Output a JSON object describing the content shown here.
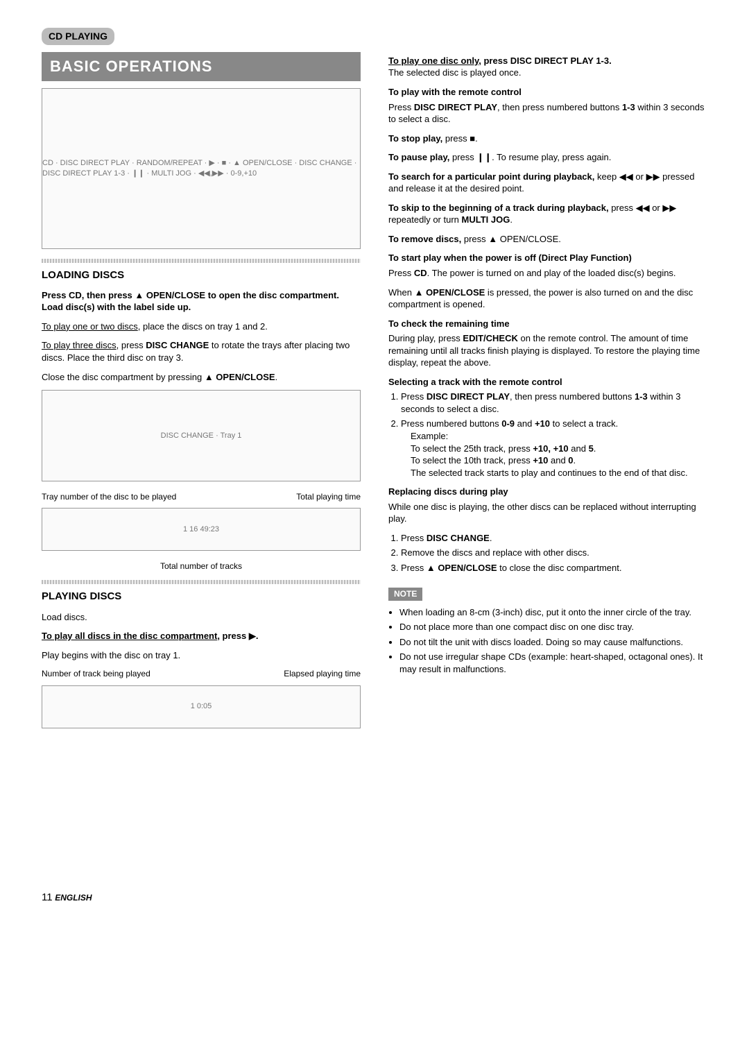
{
  "page_tag": "CD PLAYING",
  "banner": "BASIC OPERATIONS",
  "left": {
    "diagram_main_labels": "CD · DISC DIRECT PLAY · RANDOM/REPEAT · ▶ · ■ · ▲ OPEN/CLOSE · DISC CHANGE · DISC DIRECT PLAY 1-3 · ❙❙ · MULTI JOG · ◀◀,▶▶ · 0-9,+10",
    "loading_title": "LOADING DISCS",
    "loading_lead": "Press CD, then press ▲ OPEN/CLOSE to open the disc compartment.  Load disc(s) with the label side up.",
    "loading_p1_a": "To play one or two discs",
    "loading_p1_b": ", place the discs on tray 1 and 2.",
    "loading_p2_a": "To play three discs",
    "loading_p2_b": ", press ",
    "loading_p2_c": "DISC CHANGE",
    "loading_p2_d": " to rotate the trays after placing two discs. Place the third disc on tray 3.",
    "loading_p3": "Close the disc compartment by pressing ▲ OPEN/CLOSE.",
    "tray_diagram_labels": "DISC CHANGE · Tray 1",
    "display_cap_l": "Tray number of the disc to be played",
    "display_cap_r": "Total playing time",
    "display_content": "1  16  49:23",
    "display_below": "Total number of tracks",
    "playing_title": "PLAYING DISCS",
    "playing_p0": "Load discs.",
    "playing_p1_a": "To play all discs in the disc compartment",
    "playing_p1_b": ", press ▶.",
    "playing_p2": "Play begins with the disc on tray 1.",
    "play_cap_l": "Number of track being played",
    "play_cap_r": "Elapsed playing time",
    "play_display_content": "1  0:05"
  },
  "right": {
    "one_disc_a": "To play one disc only,",
    "one_disc_b": " press DISC DIRECT PLAY 1-3.",
    "one_disc_c": "The selected disc is played once.",
    "remote_h": "To play with the remote control",
    "remote_p_a": "Press ",
    "remote_p_b": "DISC DIRECT PLAY",
    "remote_p_c": ", then press numbered buttons ",
    "remote_p_d": "1-3",
    "remote_p_e": " within 3 seconds to select a disc.",
    "stop_h": "To stop play,",
    "stop_b": " press ■.",
    "pause_h": "To pause play,",
    "pause_b": " press ❙❙. To resume play, press again.",
    "search_h": "To search for a particular point during playback,",
    "search_b": " keep ◀◀ or ▶▶ pressed and release it at the desired point.",
    "skip_h": "To skip to the beginning of a track during playback,",
    "skip_b": " press ◀◀ or ▶▶ repeatedly or turn ",
    "skip_c": "MULTI JOG",
    "skip_d": ".",
    "remove_h": "To remove discs,",
    "remove_b": " press ▲ OPEN/CLOSE.",
    "direct_h": "To start play when the power is off (Direct Play Function)",
    "direct_p1_a": "Press ",
    "direct_p1_b": "CD",
    "direct_p1_c": ". The power is turned on and play of the loaded disc(s) begins.",
    "direct_p2_a": "When ▲ ",
    "direct_p2_b": "OPEN/CLOSE",
    "direct_p2_c": " is pressed, the power is also turned on and the disc compartment is opened.",
    "check_h": "To check the remaining time",
    "check_p_a": "During play, press ",
    "check_p_b": "EDIT/CHECK",
    "check_p_c": " on the remote control. The amount of time remaining until all tracks finish playing is displayed. To restore the playing time display, repeat the above.",
    "select_h": "Selecting a track with the remote control",
    "sel_1_a": "Press ",
    "sel_1_b": "DISC DIRECT PLAY",
    "sel_1_c": ", then press numbered buttons ",
    "sel_1_d": "1-3",
    "sel_1_e": " within 3 seconds to select a disc.",
    "sel_2_a": "Press numbered buttons ",
    "sel_2_b": "0-9",
    "sel_2_c": " and ",
    "sel_2_d": "+10",
    "sel_2_e": " to select a track.",
    "sel_ex": "Example:",
    "sel_ex1_a": "To select the 25th track, press ",
    "sel_ex1_b": "+10, +10",
    "sel_ex1_c": " and ",
    "sel_ex1_d": "5",
    "sel_ex1_e": ".",
    "sel_ex2_a": "To select the 10th track, press ",
    "sel_ex2_b": "+10",
    "sel_ex2_c": " and ",
    "sel_ex2_d": "0",
    "sel_ex2_e": ".",
    "sel_tail": "The selected track starts to play and continues to the end of that disc.",
    "replace_h": "Replacing discs during play",
    "replace_p": "While one disc is playing, the other discs can be replaced without interrupting play.",
    "rep_1": "Press DISC CHANGE.",
    "rep_2": "Remove the discs and replace with other discs.",
    "rep_3": "Press ▲ OPEN/CLOSE to close the disc compartment.",
    "note_label": "NOTE",
    "note_1": "When loading an 8-cm (3-inch) disc, put it onto the inner circle of the tray.",
    "note_2": "Do not place more than one compact disc on one disc tray.",
    "note_3": "Do not tilt the unit with discs loaded. Doing so may cause malfunctions.",
    "note_4": "Do not use irregular shape CDs (example: heart-shaped, octagonal ones). It may result in malfunctions."
  },
  "footer_page": "11",
  "footer_lang": "ENGLISH"
}
